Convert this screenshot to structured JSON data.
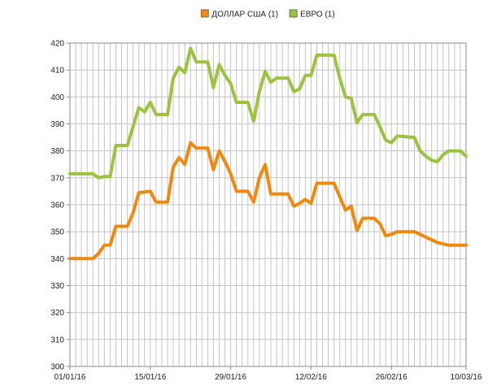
{
  "chart_data": {
    "type": "line",
    "title": "",
    "xlabel": "",
    "ylabel": "",
    "ylim": [
      300,
      420
    ],
    "y_ticks": [
      300,
      310,
      320,
      330,
      340,
      350,
      360,
      370,
      380,
      390,
      400,
      410,
      420
    ],
    "x_range": [
      "2016-01-01",
      "2016-03-10"
    ],
    "x_tick_labels": [
      {
        "date": "2016-01-01",
        "label": "01/01/16"
      },
      {
        "date": "2016-01-15",
        "label": "15/01/16"
      },
      {
        "date": "2016-01-29",
        "label": "29/01/16"
      },
      {
        "date": "2016-02-12",
        "label": "12/02/16"
      },
      {
        "date": "2016-02-26",
        "label": "26/02/16"
      },
      {
        "date": "2016-03-10",
        "label": "10/03/16"
      }
    ],
    "grid": true,
    "legend": "top-center",
    "series": [
      {
        "name": "ДОЛЛАР США (1)",
        "color": "#f0890e",
        "points": [
          [
            "2016-01-01",
            340
          ],
          [
            "2016-01-05",
            340
          ],
          [
            "2016-01-06",
            342
          ],
          [
            "2016-01-07",
            345
          ],
          [
            "2016-01-08",
            345
          ],
          [
            "2016-01-09",
            352
          ],
          [
            "2016-01-11",
            352
          ],
          [
            "2016-01-12",
            357
          ],
          [
            "2016-01-13",
            364.5
          ],
          [
            "2016-01-15",
            365
          ],
          [
            "2016-01-16",
            361
          ],
          [
            "2016-01-18",
            361
          ],
          [
            "2016-01-19",
            374
          ],
          [
            "2016-01-20",
            377.5
          ],
          [
            "2016-01-21",
            375
          ],
          [
            "2016-01-22",
            383
          ],
          [
            "2016-01-23",
            381
          ],
          [
            "2016-01-25",
            381
          ],
          [
            "2016-01-26",
            373
          ],
          [
            "2016-01-27",
            380
          ],
          [
            "2016-01-28",
            376
          ],
          [
            "2016-01-29",
            371.5
          ],
          [
            "2016-01-30",
            365
          ],
          [
            "2016-02-01",
            365
          ],
          [
            "2016-02-02",
            361
          ],
          [
            "2016-02-03",
            370
          ],
          [
            "2016-02-04",
            375
          ],
          [
            "2016-02-05",
            364
          ],
          [
            "2016-02-08",
            364
          ],
          [
            "2016-02-09",
            359.5
          ],
          [
            "2016-02-10",
            360.5
          ],
          [
            "2016-02-11",
            362
          ],
          [
            "2016-02-12",
            360.5
          ],
          [
            "2016-02-13",
            368
          ],
          [
            "2016-02-16",
            368
          ],
          [
            "2016-02-17",
            363
          ],
          [
            "2016-02-18",
            358
          ],
          [
            "2016-02-19",
            359.5
          ],
          [
            "2016-02-20",
            350.5
          ],
          [
            "2016-02-21",
            355
          ],
          [
            "2016-02-23",
            355
          ],
          [
            "2016-02-24",
            353
          ],
          [
            "2016-02-25",
            348.5
          ],
          [
            "2016-02-26",
            349
          ],
          [
            "2016-02-27",
            350
          ],
          [
            "2016-03-01",
            350
          ],
          [
            "2016-03-03",
            348
          ],
          [
            "2016-03-05",
            346
          ],
          [
            "2016-03-07",
            345
          ],
          [
            "2016-03-10",
            345
          ]
        ]
      },
      {
        "name": "ЕВРО (1)",
        "color": "#9cc33e",
        "points": [
          [
            "2016-01-01",
            371.5
          ],
          [
            "2016-01-05",
            371.5
          ],
          [
            "2016-01-06",
            370
          ],
          [
            "2016-01-07",
            370.5
          ],
          [
            "2016-01-08",
            370.5
          ],
          [
            "2016-01-09",
            382
          ],
          [
            "2016-01-11",
            382
          ],
          [
            "2016-01-12",
            389
          ],
          [
            "2016-01-13",
            396
          ],
          [
            "2016-01-14",
            394.5
          ],
          [
            "2016-01-15",
            398
          ],
          [
            "2016-01-16",
            393.5
          ],
          [
            "2016-01-18",
            393.5
          ],
          [
            "2016-01-19",
            407
          ],
          [
            "2016-01-20",
            411
          ],
          [
            "2016-01-21",
            409
          ],
          [
            "2016-01-22",
            418
          ],
          [
            "2016-01-23",
            413
          ],
          [
            "2016-01-25",
            413
          ],
          [
            "2016-01-26",
            403.5
          ],
          [
            "2016-01-27",
            412
          ],
          [
            "2016-01-28",
            408
          ],
          [
            "2016-01-29",
            405
          ],
          [
            "2016-01-30",
            398
          ],
          [
            "2016-02-01",
            398
          ],
          [
            "2016-02-02",
            391
          ],
          [
            "2016-02-03",
            402
          ],
          [
            "2016-02-04",
            409.5
          ],
          [
            "2016-02-05",
            405.5
          ],
          [
            "2016-02-06",
            407
          ],
          [
            "2016-02-08",
            407
          ],
          [
            "2016-02-09",
            402
          ],
          [
            "2016-02-10",
            403
          ],
          [
            "2016-02-11",
            408
          ],
          [
            "2016-02-12",
            408
          ],
          [
            "2016-02-13",
            415.5
          ],
          [
            "2016-02-16",
            415.5
          ],
          [
            "2016-02-17",
            407
          ],
          [
            "2016-02-18",
            400
          ],
          [
            "2016-02-19",
            399.5
          ],
          [
            "2016-02-20",
            390.5
          ],
          [
            "2016-02-21",
            393.5
          ],
          [
            "2016-02-23",
            393.5
          ],
          [
            "2016-02-24",
            389
          ],
          [
            "2016-02-25",
            384
          ],
          [
            "2016-02-26",
            383
          ],
          [
            "2016-02-27",
            385.5
          ],
          [
            "2016-03-01",
            385
          ],
          [
            "2016-03-02",
            380
          ],
          [
            "2016-03-03",
            378
          ],
          [
            "2016-03-04",
            376.5
          ],
          [
            "2016-03-05",
            376
          ],
          [
            "2016-03-06",
            378.5
          ],
          [
            "2016-03-07",
            380
          ],
          [
            "2016-03-09",
            380
          ],
          [
            "2016-03-10",
            378
          ]
        ]
      }
    ]
  }
}
